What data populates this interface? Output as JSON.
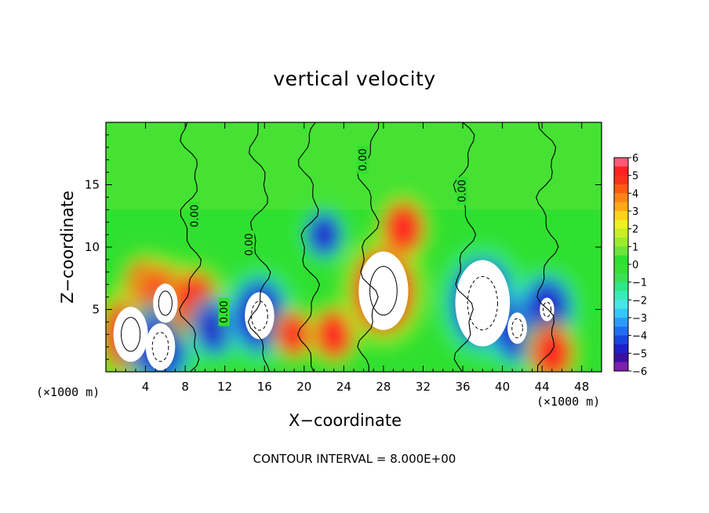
{
  "chart_data": {
    "type": "heatmap",
    "title": "vertical velocity",
    "xlabel": "X−coordinate",
    "ylabel": "Z−coordinate",
    "x_unit_left": "(×1000 m)",
    "x_unit_right": "(×1000 m)",
    "footnote": "CONTOUR INTERVAL = 8.000E+00",
    "xlim": [
      0,
      50
    ],
    "ylim": [
      0,
      20
    ],
    "x_ticks": [
      4,
      8,
      12,
      16,
      20,
      24,
      28,
      32,
      36,
      40,
      44,
      48
    ],
    "y_ticks": [
      5,
      10,
      15
    ],
    "colorbar": {
      "ticks": [
        "6",
        "5",
        "4",
        "3",
        "2",
        "1",
        "0",
        "−1",
        "−2",
        "−3",
        "−4",
        "−5",
        "−6"
      ],
      "range": [
        -6,
        6
      ],
      "colors": {
        "-6": "#7d1fb0",
        "-5.5": "#3d0fa0",
        "-5": "#2020c8",
        "-4.5": "#1844e0",
        "-4": "#1f6ef0",
        "-3.5": "#2a9cf8",
        "-3": "#38c6ff",
        "-2.5": "#4ae6e6",
        "-2": "#38ecb8",
        "-1.5": "#30e888",
        "-1": "#3ce056",
        "-0.5": "#34e034",
        "0": "#30e030",
        "0.5": "#6ee43a",
        "1": "#9cea30",
        "1.5": "#c8ee28",
        "2": "#eef020",
        "2.5": "#ffd21c",
        "3": "#ffa818",
        "3.5": "#ff8418",
        "4": "#ff5a14",
        "4.5": "#f8321c",
        "5": "#ff2020",
        "5.5": "#ff5a78",
        "6": "#ff9898"
      }
    },
    "contour_labels": [
      "0.00",
      "0.00",
      "0.00",
      "0.00",
      "0.00"
    ],
    "cells": [
      {
        "x": 2.5,
        "z": 3.0,
        "w": 1.4
      },
      {
        "x": 4.0,
        "z": 7.0,
        "w": 0.5
      },
      {
        "x": 6.0,
        "z": 5.5,
        "w": 1.2
      },
      {
        "x": 5.5,
        "z": 2.0,
        "w": -1.3
      },
      {
        "x": 9.0,
        "z": 5.5,
        "w": 0.9
      },
      {
        "x": 11.0,
        "z": 3.5,
        "w": -0.6
      },
      {
        "x": 15.5,
        "z": 4.5,
        "w": -1.3
      },
      {
        "x": 19.0,
        "z": 3.0,
        "w": 0.3
      },
      {
        "x": 23.0,
        "z": 3.0,
        "w": 0.5
      },
      {
        "x": 28.0,
        "z": 6.5,
        "w": 1.7
      },
      {
        "x": 30.0,
        "z": 11.5,
        "w": 0.6
      },
      {
        "x": 38.0,
        "z": 5.5,
        "w": -1.8
      },
      {
        "x": 41.5,
        "z": 3.5,
        "w": -1.1
      },
      {
        "x": 44.5,
        "z": 5.0,
        "w": -1.0
      },
      {
        "x": 45.0,
        "z": 1.5,
        "w": 0.6
      },
      {
        "x": 22.0,
        "z": 11.0,
        "w": -0.3
      }
    ]
  }
}
